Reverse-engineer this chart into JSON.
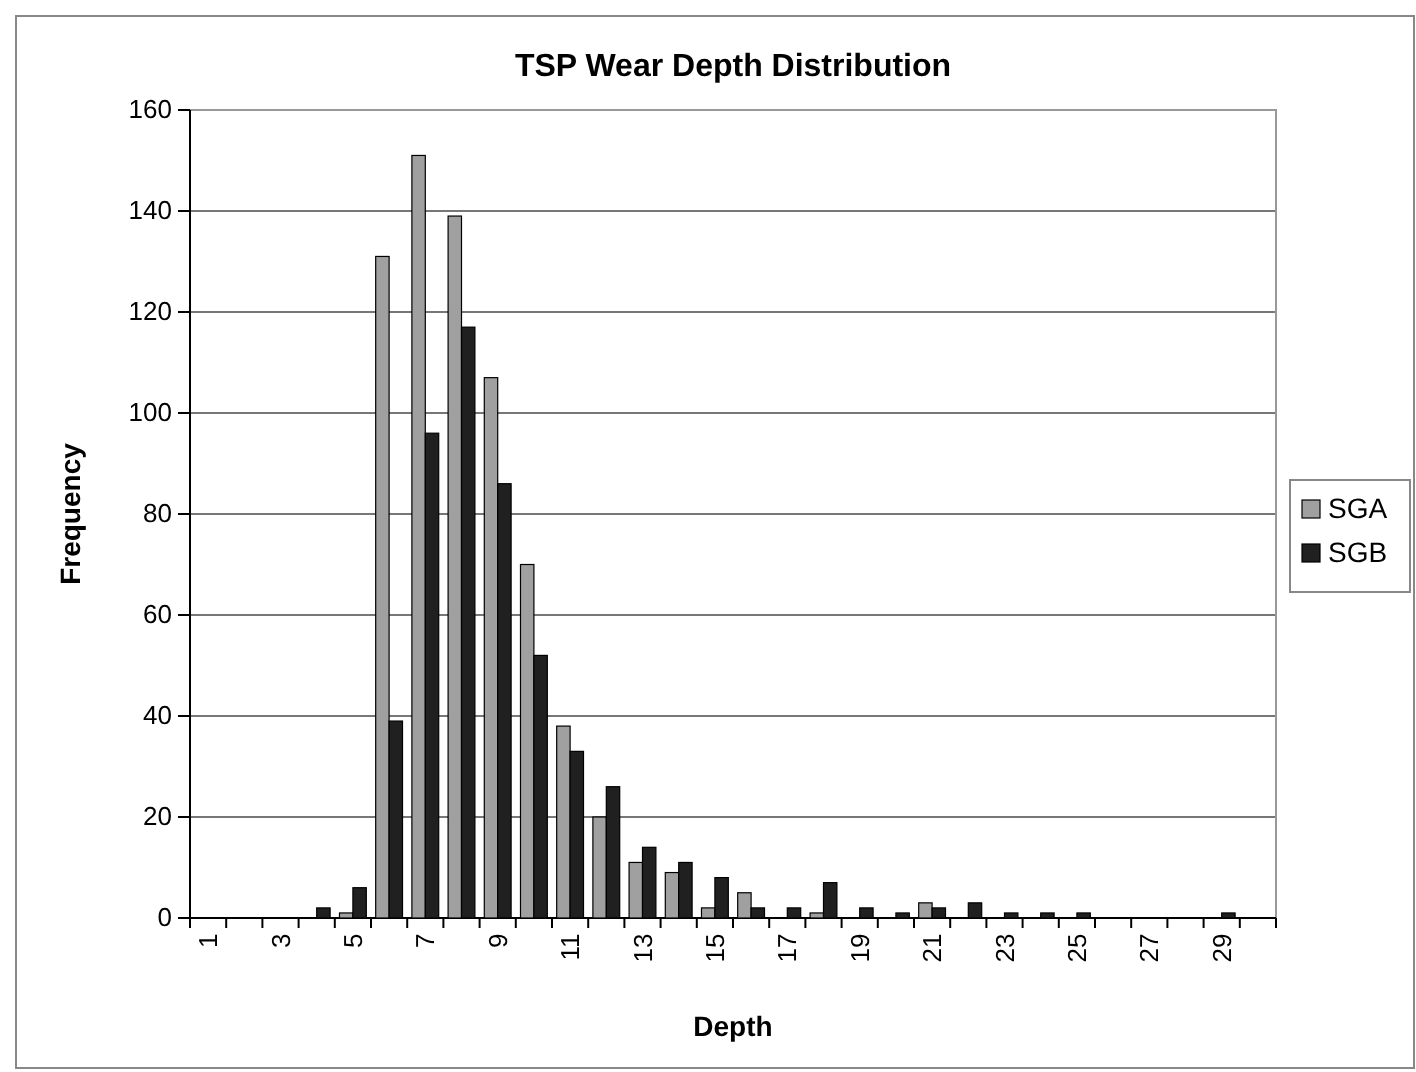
{
  "chart_data": {
    "type": "bar",
    "title": "TSP Wear Depth Distribution",
    "xlabel": "Depth",
    "ylabel": "Frequency",
    "categories": [
      "1",
      null,
      "3",
      null,
      "5",
      null,
      "7",
      null,
      "9",
      null,
      "11",
      null,
      "13",
      null,
      "15",
      null,
      "17",
      null,
      "19",
      null,
      "21",
      null,
      "23",
      null,
      "25",
      null,
      "27",
      null,
      "29",
      null
    ],
    "series": [
      {
        "name": "SGA",
        "color": "#a0a0a0",
        "values": [
          0,
          0,
          0,
          0,
          1,
          131,
          151,
          139,
          107,
          70,
          38,
          20,
          11,
          9,
          2,
          5,
          0,
          1,
          0,
          0,
          3,
          0,
          0,
          0,
          0,
          0,
          0,
          0,
          0,
          0
        ]
      },
      {
        "name": "SGB",
        "color": "#202020",
        "values": [
          0,
          0,
          0,
          2,
          6,
          39,
          96,
          117,
          86,
          52,
          33,
          26,
          14,
          11,
          8,
          2,
          2,
          7,
          2,
          1,
          2,
          3,
          1,
          1,
          1,
          0,
          0,
          0,
          1,
          0
        ]
      }
    ],
    "ylim": [
      0,
      160
    ],
    "yticks": [
      0,
      20,
      40,
      60,
      80,
      100,
      120,
      140,
      160
    ],
    "grid": "y",
    "legend": "right"
  }
}
